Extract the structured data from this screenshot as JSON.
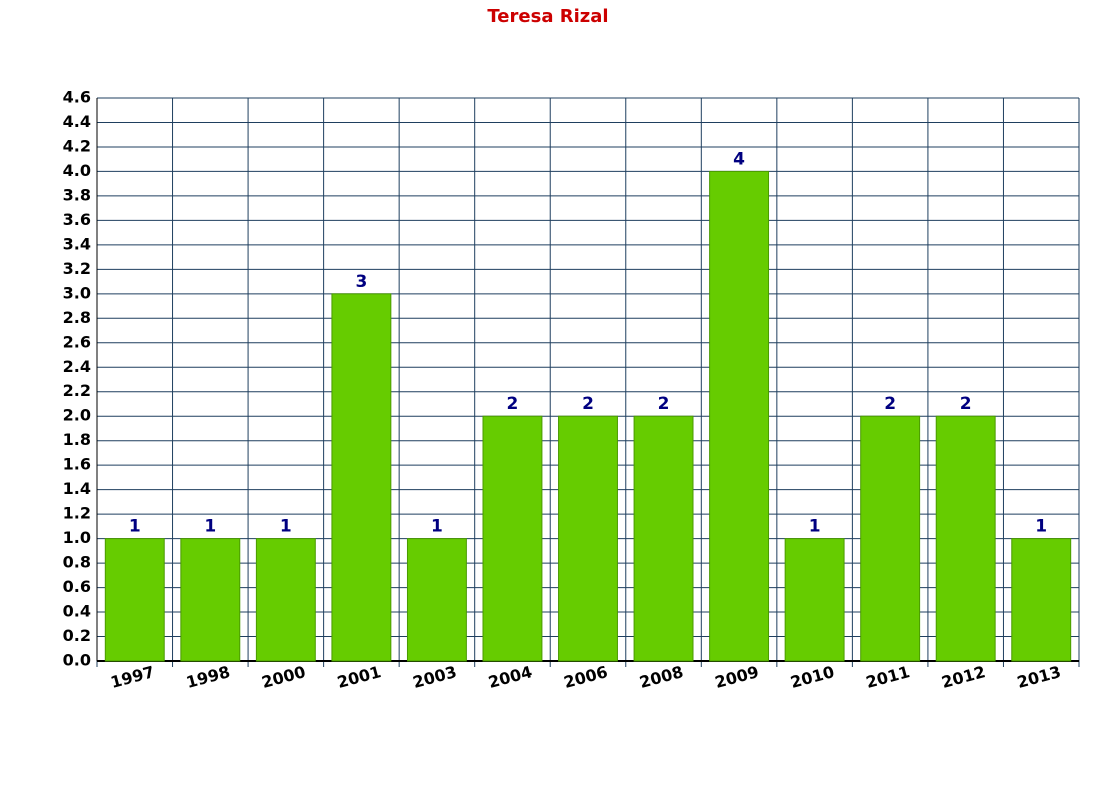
{
  "chart_data": {
    "type": "bar",
    "title": "Teresa Rizal",
    "categories": [
      "1997",
      "1998",
      "2000",
      "2001",
      "2003",
      "2004",
      "2006",
      "2008",
      "2009",
      "2010",
      "2011",
      "2012",
      "2013"
    ],
    "values": [
      1,
      1,
      1,
      3,
      1,
      2,
      2,
      2,
      4,
      1,
      2,
      2,
      1
    ],
    "color": "#66cc00",
    "ylim": [
      0,
      4.6
    ],
    "yticks": [
      {
        "value": 0,
        "label": "0.0"
      },
      0.2,
      0.4,
      0.6,
      0.8,
      {
        "value": 1,
        "label": "1.0"
      },
      1.2,
      1.4,
      1.6,
      1.8,
      {
        "value": 2,
        "label": "2.0"
      },
      2.2,
      2.4,
      2.6,
      2.8,
      {
        "value": 3,
        "label": "3.0"
      },
      3.2,
      3.4,
      3.6,
      3.8,
      {
        "value": 4,
        "label": "4.0"
      },
      4.2,
      4.4,
      4.6
    ],
    "grid": true
  }
}
